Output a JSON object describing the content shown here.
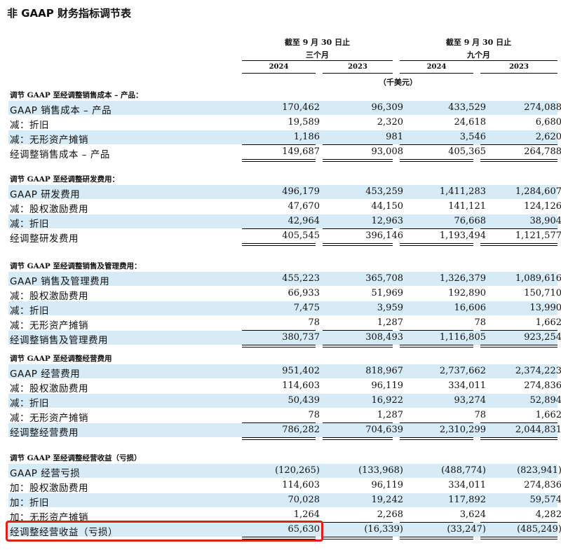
{
  "title": "非 GAAP 财务指标调节表",
  "header": {
    "group1": "截至 9 月 30 日止",
    "group2": "截至 9 月 30 日止",
    "period1": "三个月",
    "period2": "九个月",
    "years": [
      "2024",
      "2023",
      "2024",
      "2023"
    ],
    "unit": "（千美元）"
  },
  "sections": [
    {
      "heading": "调节 GAAP 至经调整销售成本 – 产品：",
      "rows": [
        {
          "label": "GAAP 销售成本 – 产品",
          "values": [
            "170,462",
            "96,309",
            "433,529",
            "274,088"
          ]
        },
        {
          "label": "减：折旧",
          "values": [
            "19,589",
            "2,320",
            "24,618",
            "6,680"
          ]
        },
        {
          "label": "减：无形资产摊销",
          "values": [
            "1,186",
            "981",
            "3,546",
            "2,620"
          ]
        },
        {
          "label": "经调整销售成本 – 产品",
          "values": [
            "149,687",
            "93,008",
            "405,365",
            "264,788"
          ]
        }
      ]
    },
    {
      "heading": "调节 GAAP 至经调整研发费用：",
      "rows": [
        {
          "label": "GAAP 研发费用",
          "values": [
            "496,179",
            "453,259",
            "1,411,283",
            "1,284,607"
          ]
        },
        {
          "label": "减：股权激励费用",
          "values": [
            "47,670",
            "44,150",
            "141,121",
            "124,126"
          ]
        },
        {
          "label": "减：折旧",
          "values": [
            "42,964",
            "12,963",
            "76,668",
            "38,904"
          ]
        },
        {
          "label": "经调整研发费用",
          "values": [
            "405,545",
            "396,146",
            "1,193,494",
            "1,121,577"
          ]
        }
      ]
    },
    {
      "heading": "调节 GAAP 至经调整销售及管理费用：",
      "rows": [
        {
          "label": "GAAP 销售及管理费用",
          "values": [
            "455,223",
            "365,708",
            "1,326,379",
            "1,089,616"
          ]
        },
        {
          "label": "减：股权激励费用",
          "values": [
            "66,933",
            "51,969",
            "192,890",
            "150,710"
          ]
        },
        {
          "label": "减：折旧",
          "values": [
            "7,475",
            "3,959",
            "16,606",
            "13,990"
          ]
        },
        {
          "label": "减：无形资产摊销",
          "values": [
            "78",
            "1,287",
            "78",
            "1,662"
          ]
        },
        {
          "label": "经调整销售及管理费用",
          "values": [
            "380,737",
            "308,493",
            "1,116,805",
            "923,254"
          ]
        }
      ]
    },
    {
      "heading": "调节 GAAP 至经调整经营费用",
      "rows": [
        {
          "label": "GAAP 经营费用",
          "values": [
            "951,402",
            "818,967",
            "2,737,662",
            "2,374,223"
          ]
        },
        {
          "label": "减：股权激励费用",
          "values": [
            "114,603",
            "96,119",
            "334,011",
            "274,836"
          ]
        },
        {
          "label": "减：折旧",
          "values": [
            "50,439",
            "16,922",
            "93,274",
            "52,894"
          ]
        },
        {
          "label": "减：无形资产摊销",
          "values": [
            "78",
            "1,287",
            "78",
            "1,662"
          ]
        },
        {
          "label": "经调整经营费用",
          "values": [
            "786,282",
            "704,639",
            "2,310,299",
            "2,044,831"
          ]
        }
      ]
    },
    {
      "heading": "调节 GAAP 至经调整经营收益（亏损）",
      "rows": [
        {
          "label": "GAAP 经营亏损",
          "values": [
            "(120,265)",
            "(133,968)",
            "(488,774)",
            "(823,941)"
          ]
        },
        {
          "label": "加：股权激励费用",
          "values": [
            "114,603",
            "96,119",
            "334,011",
            "274,836"
          ]
        },
        {
          "label": "加：折旧",
          "values": [
            "70,028",
            "19,242",
            "117,892",
            "59,574"
          ]
        },
        {
          "label": "加：无形资产摊销",
          "values": [
            "1,264",
            "2,268",
            "3,624",
            "4,282"
          ]
        },
        {
          "label": "经调整经营收益（亏损）",
          "values": [
            "65,630",
            "(16,339)",
            "(33,247)",
            "(485,249)"
          ]
        }
      ]
    }
  ],
  "colors": {
    "row_shade": "#d7ebf7",
    "highlight": "#e0201c"
  }
}
